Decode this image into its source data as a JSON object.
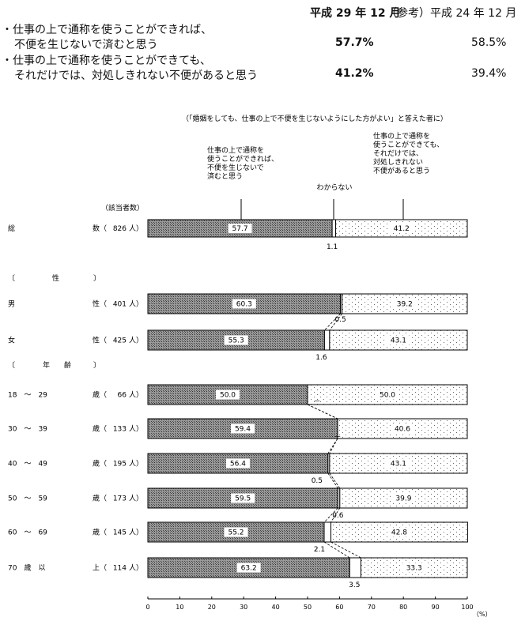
{
  "summary": {
    "col_current": "平成 29 年 12 月",
    "col_reference": "（参考）平成 24 年 12 月",
    "rows": [
      {
        "line1": "・仕事の上で通称を使うことができれば、",
        "line2": "不便を生じないで済むと思う",
        "current": "57.7%",
        "reference": "58.5%"
      },
      {
        "line1": "・仕事の上で通称を使うことができても、",
        "line2": "それだけでは、対処しきれない不便があると思う",
        "current": "41.2%",
        "reference": "39.4%"
      }
    ]
  },
  "chart_data": {
    "type": "bar",
    "orientation": "horizontal-stacked-100",
    "subtitle": "（「婚姻をしても、仕事の上で不便を生じないようにした方がよい」と答えた者に）",
    "count_header": "（該当者数）",
    "series": [
      {
        "name": "仕事の上で通称を使うことができれば、不便を生じないで済むと思う",
        "label_lines": [
          "仕事の上で通称を",
          "使うことができれば、",
          "不便を生じないで",
          "済むと思う"
        ],
        "pattern": "crosshatch-dark"
      },
      {
        "name": "わからない",
        "label_lines": [
          "わからない"
        ],
        "pattern": "white"
      },
      {
        "name": "仕事の上で通称を使うことができても、それだけでは、対処しきれない不便があると思う",
        "label_lines": [
          "仕事の上で通称を",
          "使うことができても、",
          "それだけでは、",
          "対処しきれない",
          "不便があると思う"
        ],
        "pattern": "dots-light"
      }
    ],
    "groups": [
      {
        "header": "",
        "rows": [
          {
            "label_left": "総",
            "label_right": "数（",
            "count": "826",
            "unit": "人）",
            "values": [
              57.7,
              1.1,
              41.2
            ],
            "labels": [
              "57.7",
              "1.1",
              "41.2"
            ]
          }
        ]
      },
      {
        "header_left": "〔",
        "header_mid": "性",
        "header_right": "〕",
        "rows": [
          {
            "label_left": "男",
            "label_right": "性（",
            "count": "401",
            "unit": "人）",
            "values": [
              60.3,
              0.5,
              39.2
            ],
            "labels": [
              "60.3",
              "0.5",
              "39.2"
            ]
          },
          {
            "label_left": "女",
            "label_right": "性（",
            "count": "425",
            "unit": "人）",
            "values": [
              55.3,
              1.6,
              43.1
            ],
            "labels": [
              "55.3",
              "1.6",
              "43.1"
            ]
          }
        ]
      },
      {
        "header_left": "〔",
        "header_mid": "年　　齢",
        "header_right": "〕",
        "rows": [
          {
            "label_left": "18　～　29",
            "label_right": "歳（",
            "count": "66",
            "unit": "人）",
            "values": [
              50.0,
              0,
              50.0
            ],
            "labels": [
              "50.0",
              "－",
              "50.0"
            ]
          },
          {
            "label_left": "30　～　39",
            "label_right": "歳（",
            "count": "133",
            "unit": "人）",
            "values": [
              59.4,
              0,
              40.6
            ],
            "labels": [
              "59.4",
              "－",
              "40.6"
            ]
          },
          {
            "label_left": "40　～　49",
            "label_right": "歳（",
            "count": "195",
            "unit": "人）",
            "values": [
              56.4,
              0.5,
              43.1
            ],
            "labels": [
              "56.4",
              "0.5",
              "43.1"
            ]
          },
          {
            "label_left": "50　～　59",
            "label_right": "歳（",
            "count": "173",
            "unit": "人）",
            "values": [
              59.5,
              0.6,
              39.9
            ],
            "labels": [
              "59.5",
              "0.6",
              "39.9"
            ]
          },
          {
            "label_left": "60　～　69",
            "label_right": "歳（",
            "count": "145",
            "unit": "人）",
            "values": [
              55.2,
              2.1,
              42.8
            ],
            "labels": [
              "55.2",
              "2.1",
              "42.8"
            ]
          },
          {
            "label_left": "70　歳　以",
            "label_right": "上（",
            "count": "114",
            "unit": "人）",
            "values": [
              63.2,
              3.5,
              33.3
            ],
            "labels": [
              "63.2",
              "3.5",
              "33.3"
            ]
          }
        ]
      }
    ],
    "xlim": [
      0,
      100
    ],
    "xticks": [
      0,
      10,
      20,
      30,
      40,
      50,
      60,
      70,
      80,
      90,
      100
    ],
    "xunit": "（%）",
    "grid": false
  }
}
